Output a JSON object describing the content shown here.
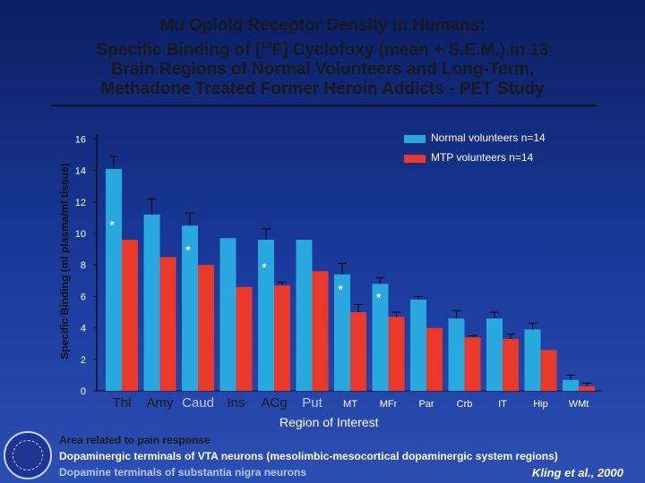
{
  "title_lines": [
    "Mu Opioid Receptor Density in Humans:",
    "Specific Binding of [18F] Cyclofoxy (mean + S.E.M.) in 13",
    "Brain Regions of Normal Volunteers and Long-Term,",
    "Methadone Treated Former Heroin Addicts  - PET Study"
  ],
  "colors": {
    "normal": "#29a8e0",
    "mtp": "#e8392b",
    "group_pain": "#1a1a1a",
    "group_vta": "#ffffff",
    "group_sn": "#b7c7ff"
  },
  "chart_data": {
    "type": "bar",
    "title": "Mu Opioid Receptor Density in Humans: Specific Binding of [18F] Cyclofoxy (mean + S.E.M.) in 13 Brain Regions of Normal Volunteers and Long-Term, Methadone Treated Former Heroin Addicts - PET Study",
    "xlabel": "Region of Interest",
    "ylabel": "Specific Binding (ml plasma/ml tissue)",
    "ylim": [
      0,
      16.5
    ],
    "yticks": [
      0,
      2,
      4,
      6,
      8,
      10,
      12,
      14,
      16
    ],
    "categories": [
      "Thl",
      "Amy",
      "Caud",
      "Ins",
      "ACg",
      "Put",
      "MT",
      "MFr",
      "Par",
      "Crb",
      "IT",
      "Hip",
      "WMt"
    ],
    "category_groups": [
      "group_pain",
      "group_pain",
      "group_sn",
      "group_pain",
      "group_pain",
      "group_sn",
      "group_vta",
      "group_vta",
      "group_vta",
      "group_vta",
      "group_vta",
      "group_vta",
      "group_vta"
    ],
    "series": [
      {
        "name": "Normal volunteers n=14",
        "values": [
          14.1,
          11.2,
          10.5,
          9.7,
          9.6,
          9.6,
          7.4,
          6.8,
          5.8,
          4.6,
          4.6,
          3.9,
          0.7
        ],
        "errors": [
          0.8,
          1.0,
          0.8,
          0.0,
          0.7,
          0.0,
          0.7,
          0.4,
          0.2,
          0.5,
          0.4,
          0.4,
          0.3
        ]
      },
      {
        "name": "MTP volunteers n=14",
        "values": [
          9.6,
          8.5,
          8.0,
          6.6,
          6.7,
          7.6,
          5.0,
          4.7,
          4.0,
          3.4,
          3.3,
          2.6,
          0.3
        ],
        "errors": [
          0.0,
          0.0,
          0.0,
          0.0,
          0.2,
          0.0,
          0.5,
          0.3,
          0.0,
          0.1,
          0.3,
          0.0,
          0.2
        ]
      }
    ],
    "significance": [
      "*",
      "",
      "*",
      "",
      "*",
      "",
      "*",
      "*",
      "",
      "",
      "",
      "",
      ""
    ],
    "legend": "top-right",
    "grid": false
  },
  "notes": [
    {
      "text": "Area related to pain response",
      "group": "group_pain"
    },
    {
      "text": "Dopaminergic terminals of VTA neurons (mesolimbic-mesocortical dopaminergic system regions)",
      "group": "group_vta"
    },
    {
      "text": "Dopamine terminals of substantia nigra neurons",
      "group": "group_sn"
    }
  ],
  "citation": "Kling et al., 2000"
}
